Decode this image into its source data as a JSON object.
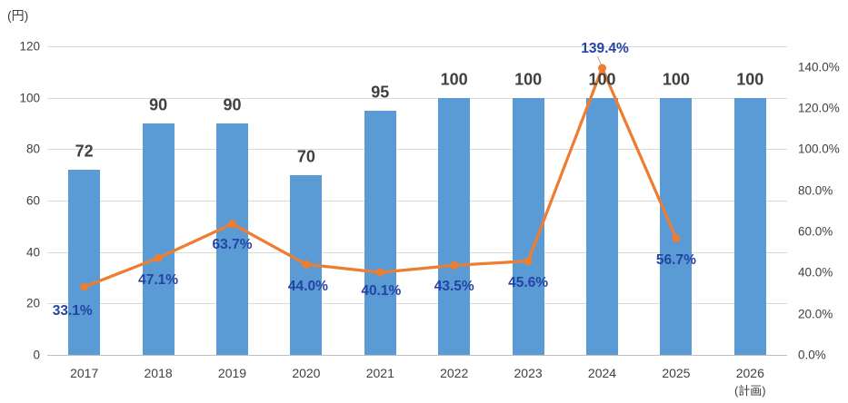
{
  "chart": {
    "unit_label": "(円)"
  },
  "chart_data": {
    "type": "bar",
    "subtype": "combo-bar-line",
    "title": "",
    "categories": [
      "2017",
      "2018",
      "2019",
      "2020",
      "2021",
      "2022",
      "2023",
      "2024",
      "2025",
      "2026"
    ],
    "category_sublabels": [
      "",
      "",
      "",
      "",
      "",
      "",
      "",
      "",
      "",
      "(計画)"
    ],
    "series": [
      {
        "name": "amount-bars",
        "type": "bar",
        "axis": "left",
        "color": "#5B9BD5",
        "values": [
          72,
          90,
          90,
          70,
          95,
          100,
          100,
          100,
          100,
          100
        ],
        "labels": [
          "72",
          "90",
          "90",
          "70",
          "95",
          "100",
          "100",
          "100",
          "100",
          "100"
        ],
        "label_color": "#404040"
      },
      {
        "name": "ratio-line",
        "type": "line",
        "axis": "right",
        "color": "#ED7D31",
        "values": [
          33.1,
          47.1,
          63.7,
          44.0,
          40.1,
          43.5,
          45.6,
          139.4,
          56.7,
          null
        ],
        "labels": [
          "33.1%",
          "47.1%",
          "63.7%",
          "44.0%",
          "40.1%",
          "43.5%",
          "45.6%",
          "139.4%",
          "56.7%",
          ""
        ],
        "label_color": "#2344A3",
        "label_offsets": [
          [
            -13,
            27
          ],
          [
            0,
            25
          ],
          [
            0,
            23
          ],
          [
            2,
            25
          ],
          [
            1,
            21
          ],
          [
            0,
            24
          ],
          [
            0,
            24
          ],
          [
            3,
            -21
          ],
          [
            0,
            25
          ],
          [
            0,
            0
          ]
        ],
        "marker": "circle"
      }
    ],
    "left_axis": {
      "title": "(円)",
      "min": 0,
      "max": 120,
      "step": 20,
      "ticks": [
        "0",
        "20",
        "40",
        "60",
        "80",
        "100",
        "120"
      ]
    },
    "right_axis": {
      "min": 0,
      "max": 150,
      "step": 20,
      "ticks": [
        "0.0%",
        "20.0%",
        "40.0%",
        "60.0%",
        "80.0%",
        "100.0%",
        "120.0%",
        "140.0%"
      ]
    },
    "grid": true,
    "legend": "none",
    "colors": {
      "bar": "#5B9BD5",
      "line": "#ED7D31",
      "pct_label": "#2344A3",
      "text": "#404040",
      "gridline": "#D9D9D9",
      "axis_line": "#BFBFBF",
      "leader_line": "#A6A6A6"
    }
  }
}
